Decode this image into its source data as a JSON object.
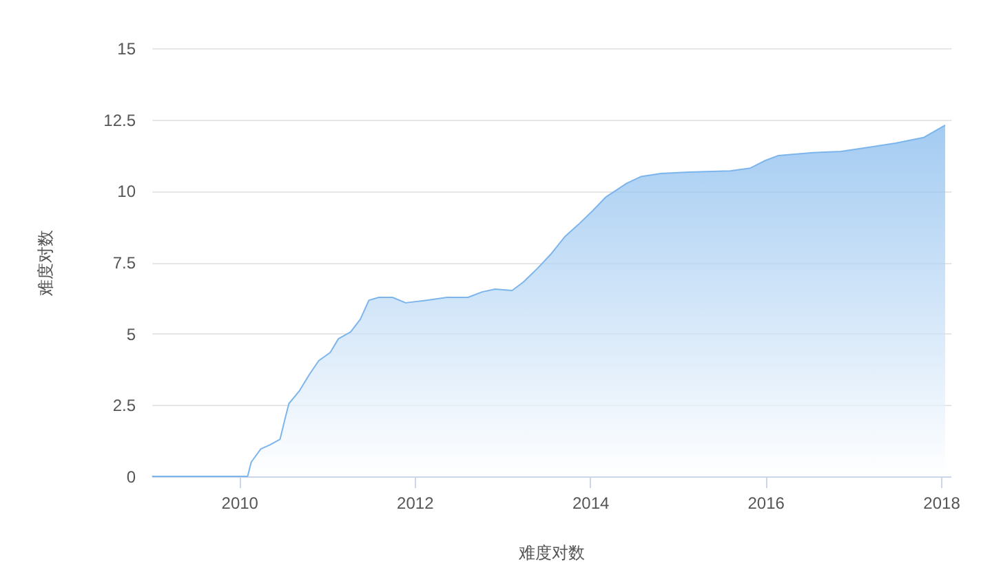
{
  "chart_data": {
    "type": "area",
    "xlabel": "难度对数",
    "ylabel": "难度对数",
    "x": [
      "2009-01-03",
      "2010-01-01",
      "2010-02-05",
      "2010-02-20",
      "2010-04-01",
      "2010-05-08",
      "2010-06-20",
      "2010-07-13",
      "2010-07-27",
      "2010-09-09",
      "2010-10-20",
      "2010-11-28",
      "2011-01-15",
      "2011-02-18",
      "2011-04-10",
      "2011-05-20",
      "2011-06-25",
      "2011-08-05",
      "2011-10-01",
      "2011-11-25",
      "2012-02-20",
      "2012-05-15",
      "2012-08-10",
      "2012-10-08",
      "2012-12-01",
      "2013-02-10",
      "2013-03-28",
      "2013-05-26",
      "2013-07-20",
      "2013-09-17",
      "2013-11-14",
      "2014-01-12",
      "2014-03-08",
      "2014-06-03",
      "2014-07-31",
      "2014-10-23",
      "2015-02-17",
      "2015-08-07",
      "2015-10-30",
      "2015-12-27",
      "2016-02-24",
      "2016-07-16",
      "2016-11-10",
      "2017-03-05",
      "2017-06-25",
      "2017-10-20",
      "2018-01-18"
    ],
    "series": [
      {
        "color": "#7cb5ec",
        "values": [
          0,
          0,
          0,
          0.5,
          0.96,
          1.1,
          1.3,
          2.1,
          2.55,
          3.0,
          3.57,
          4.05,
          4.34,
          4.82,
          5.06,
          5.5,
          6.17,
          6.27,
          6.27,
          6.08,
          6.17,
          6.27,
          6.27,
          6.46,
          6.56,
          6.51,
          6.8,
          7.28,
          7.77,
          8.39,
          8.83,
          9.31,
          9.79,
          10.27,
          10.5,
          10.61,
          10.66,
          10.7,
          10.8,
          11.05,
          11.24,
          11.34,
          11.38,
          11.53,
          11.67,
          11.87,
          12.3
        ]
      }
    ],
    "xlim": [
      "2009-01-01",
      "2018-02-10"
    ],
    "xticks": [
      "2010",
      "2012",
      "2014",
      "2016",
      "2018"
    ],
    "ylim": [
      0,
      15
    ],
    "yticks": [
      0,
      2.5,
      5,
      7.5,
      10,
      12.5,
      15
    ],
    "grid": "y"
  }
}
